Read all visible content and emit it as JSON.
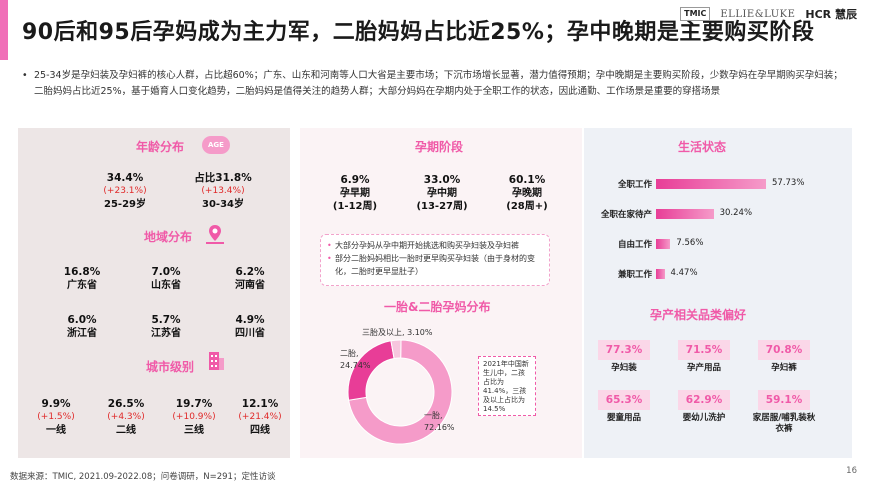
{
  "header": {
    "title": "90后和95后孕妈成为主力军，二胎妈妈占比近25%；孕中晚期是主要购买阶段",
    "logos": [
      "TMIC",
      "ELLIE&LUKE",
      "HCR",
      "慧辰"
    ]
  },
  "intro": {
    "bullet": "•",
    "text": "25-34岁是孕妇装及孕妇裤的核心人群，占比超60%；广东、山东和河南等人口大省是主要市场；下沉市场增长显著，潜力值得预期；孕中晚期是主要购买阶段，少数孕妈在孕早期购买孕妇装；二胎妈妈占比近25%，基于婚育人口变化趋势，二胎妈妈是值得关注的趋势人群；大部分妈妈在孕期内处于全职工作的状态，因此通勤、工作场景是重要的穿搭场景"
  },
  "age": {
    "title": "年龄分布",
    "badge": "AGE",
    "items": [
      {
        "value": "34.4%",
        "delta": "(+23.1%)",
        "label": "25-29岁"
      },
      {
        "value": "占比31.8%",
        "delta": "(+13.4%)",
        "label": "30-34岁"
      }
    ]
  },
  "region": {
    "title": "地域分布",
    "items": [
      {
        "value": "16.8%",
        "label": "广东省"
      },
      {
        "value": "7.0%",
        "label": "山东省"
      },
      {
        "value": "6.2%",
        "label": "河南省"
      },
      {
        "value": "6.0%",
        "label": "浙江省"
      },
      {
        "value": "5.7%",
        "label": "江苏省"
      },
      {
        "value": "4.9%",
        "label": "四川省"
      }
    ]
  },
  "city": {
    "title": "城市级别",
    "items": [
      {
        "value": "9.9%",
        "delta": "(+1.5%)",
        "label": "一线"
      },
      {
        "value": "26.5%",
        "delta": "(+4.3%)",
        "label": "二线"
      },
      {
        "value": "19.7%",
        "delta": "(+10.9%)",
        "label": "三线"
      },
      {
        "value": "12.1%",
        "delta": "(+21.4%)",
        "label": "四线"
      }
    ]
  },
  "stage": {
    "title": "孕期阶段",
    "items": [
      {
        "value": "6.9%",
        "label": "孕早期",
        "sub": "(1-12周)"
      },
      {
        "value": "33.0%",
        "label": "孕中期",
        "sub": "(13-27周)"
      },
      {
        "value": "60.1%",
        "label": "孕晚期",
        "sub": "(28周+)"
      }
    ],
    "bullets": [
      "大部分孕妈从孕中期开始挑选和购买孕妇装及孕妇裤",
      "部分二胎妈妈相比一胎时更早购买孕妇装（由于身材的变化，二胎时更早显肚子）"
    ]
  },
  "donut": {
    "title": "一胎&二胎孕妈分布",
    "labels": {
      "first": "一胎,",
      "first_val": "72.16%",
      "second": "二胎,",
      "second_val": "24.74%",
      "third": "三胎及以上, 3.10%"
    },
    "note": "2021年中国新生儿中，二孩占比为41.4%，三孩及以上占比为14.5%"
  },
  "chart_data": {
    "type": "pie",
    "categories": [
      "一胎",
      "二胎",
      "三胎及以上"
    ],
    "values": [
      72.16,
      24.74,
      3.1
    ],
    "colors": [
      "#f59bc9",
      "#e83d97",
      "#f7c6de"
    ]
  },
  "work": {
    "title": "生活状态",
    "items": [
      {
        "label": "全职工作",
        "value": "57.73%",
        "num": 57.73
      },
      {
        "label": "全职在家待产",
        "value": "30.24%",
        "num": 30.24
      },
      {
        "label": "自由工作",
        "value": "7.56%",
        "num": 7.56
      },
      {
        "label": "兼职工作",
        "value": "4.47%",
        "num": 4.47
      }
    ]
  },
  "prefs": {
    "title": "孕产相关品类偏好",
    "items": [
      {
        "value": "77.3%",
        "label": "孕妇装"
      },
      {
        "value": "71.5%",
        "label": "孕产用品"
      },
      {
        "value": "70.8%",
        "label": "孕妇裤"
      },
      {
        "value": "65.3%",
        "label": "婴童用品"
      },
      {
        "value": "62.9%",
        "label": "婴幼儿洗护"
      },
      {
        "value": "59.1%",
        "label": "家居服/哺乳装秋衣裤"
      }
    ]
  },
  "footer": {
    "source": "数据来源：TMIC, 2021.09-2022.08；问卷调研，N=291；定性访谈",
    "page": "16"
  },
  "theme": {
    "accent": "#f05aa8",
    "up": "#e02a2a"
  }
}
